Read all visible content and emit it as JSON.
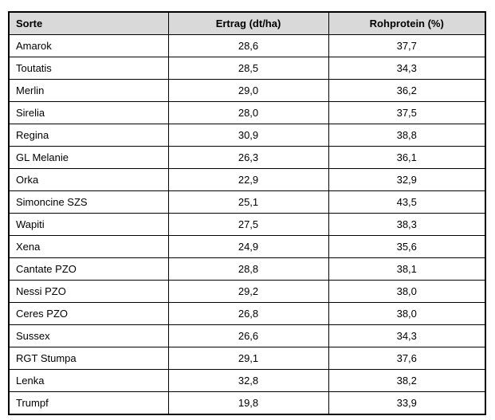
{
  "table": {
    "headers": [
      "Sorte",
      "Ertrag (dt/ha)",
      "Rohprotein (%)"
    ],
    "header_bg_color": "#d9d9d9",
    "border_color": "#000000",
    "rows": [
      {
        "sorte": "Amarok",
        "ertrag": "28,6",
        "rohprotein": "37,7"
      },
      {
        "sorte": "Toutatis",
        "ertrag": "28,5",
        "rohprotein": "34,3"
      },
      {
        "sorte": "Merlin",
        "ertrag": "29,0",
        "rohprotein": "36,2"
      },
      {
        "sorte": "Sirelia",
        "ertrag": "28,0",
        "rohprotein": "37,5"
      },
      {
        "sorte": "Regina",
        "ertrag": "30,9",
        "rohprotein": "38,8"
      },
      {
        "sorte": "GL Melanie",
        "ertrag": "26,3",
        "rohprotein": "36,1"
      },
      {
        "sorte": "Orka",
        "ertrag": "22,9",
        "rohprotein": "32,9"
      },
      {
        "sorte": "Simoncine SZS",
        "ertrag": "25,1",
        "rohprotein": "43,5"
      },
      {
        "sorte": "Wapiti",
        "ertrag": "27,5",
        "rohprotein": "38,3"
      },
      {
        "sorte": "Xena",
        "ertrag": "24,9",
        "rohprotein": "35,6"
      },
      {
        "sorte": "Cantate PZO",
        "ertrag": "28,8",
        "rohprotein": "38,1"
      },
      {
        "sorte": "Nessi PZO",
        "ertrag": "29,2",
        "rohprotein": "38,0"
      },
      {
        "sorte": "Ceres PZO",
        "ertrag": "26,8",
        "rohprotein": "38,0"
      },
      {
        "sorte": "Sussex",
        "ertrag": "26,6",
        "rohprotein": "34,3"
      },
      {
        "sorte": "RGT Stumpa",
        "ertrag": "29,1",
        "rohprotein": "37,6"
      },
      {
        "sorte": "Lenka",
        "ertrag": "32,8",
        "rohprotein": "38,2"
      },
      {
        "sorte": "Trumpf",
        "ertrag": "19,8",
        "rohprotein": "33,9"
      }
    ]
  }
}
